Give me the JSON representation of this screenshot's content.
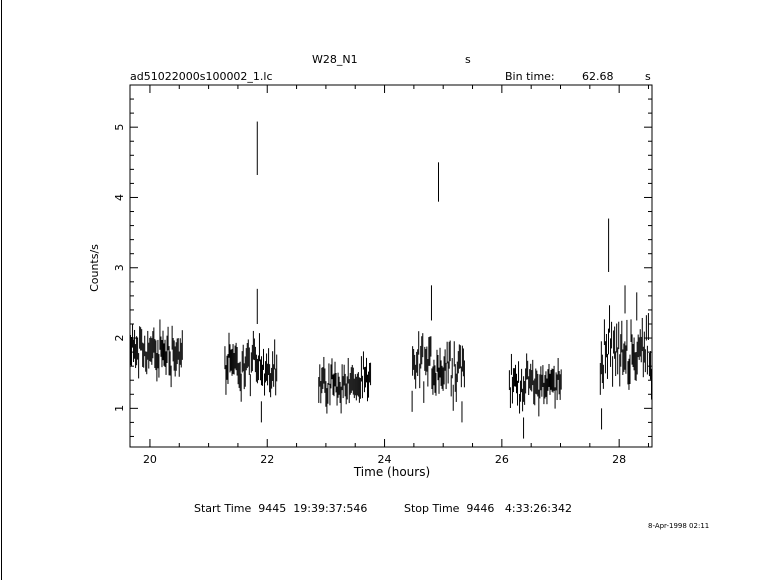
{
  "header": {
    "object": "W28_N1",
    "object_suffix": "s",
    "filename": "ad51022000s100002_1.lc",
    "bin_label": "Bin time:",
    "bin_value": "62.68",
    "bin_unit": "s"
  },
  "footer": {
    "start_time": "Start Time  9445  19:39:37:546",
    "stop_time": "Stop Time  9446   4:33:26:342",
    "date_stamp": "8-Apr-1998 02:11"
  },
  "chart_data": {
    "type": "scatter",
    "title": "W28_N1",
    "subtitle": "ad51022000s100002_1.lc",
    "xlabel": "Time (hours)",
    "ylabel": "Counts/s",
    "xlim": [
      19.66,
      28.56
    ],
    "ylim": [
      0.45,
      5.6
    ],
    "xticks": [
      20,
      22,
      24,
      26,
      28
    ],
    "xtick_labels": [
      "20",
      "22",
      "24",
      "26",
      "28"
    ],
    "yticks": [
      1,
      2,
      3,
      4,
      5
    ],
    "ytick_labels": [
      "1",
      "2",
      "3",
      "4",
      "5"
    ],
    "grid": false,
    "error_bars": true,
    "segments": [
      {
        "x_range": [
          19.66,
          20.56
        ],
        "level": 1.8,
        "spread": 0.25,
        "err": 0.18
      },
      {
        "x_range": [
          21.27,
          22.17
        ],
        "level": 1.6,
        "spread": 0.25,
        "err": 0.18
      },
      {
        "x_range": [
          22.87,
          23.77
        ],
        "level": 1.35,
        "spread": 0.2,
        "err": 0.16
      },
      {
        "x_range": [
          24.47,
          25.37
        ],
        "level": 1.6,
        "spread": 0.28,
        "err": 0.18
      },
      {
        "x_range": [
          26.12,
          27.02
        ],
        "level": 1.35,
        "spread": 0.2,
        "err": 0.16
      },
      {
        "x_range": [
          27.67,
          28.56
        ],
        "level": 1.8,
        "spread": 0.3,
        "err": 0.2
      }
    ],
    "highlights": [
      {
        "x": 21.83,
        "y": 4.7,
        "err": 0.38
      },
      {
        "x": 24.92,
        "y": 4.22,
        "err": 0.28
      },
      {
        "x": 27.82,
        "y": 3.32,
        "err": 0.38
      },
      {
        "x": 21.83,
        "y": 2.45,
        "err": 0.25
      },
      {
        "x": 24.8,
        "y": 2.5,
        "err": 0.25
      },
      {
        "x": 28.1,
        "y": 2.55,
        "err": 0.2
      },
      {
        "x": 28.3,
        "y": 2.45,
        "err": 0.2
      },
      {
        "x": 26.37,
        "y": 0.72,
        "err": 0.15
      },
      {
        "x": 27.7,
        "y": 0.85,
        "err": 0.15
      },
      {
        "x": 24.47,
        "y": 1.1,
        "err": 0.15
      },
      {
        "x": 25.32,
        "y": 0.95,
        "err": 0.15
      },
      {
        "x": 21.9,
        "y": 0.95,
        "err": 0.15
      }
    ]
  }
}
